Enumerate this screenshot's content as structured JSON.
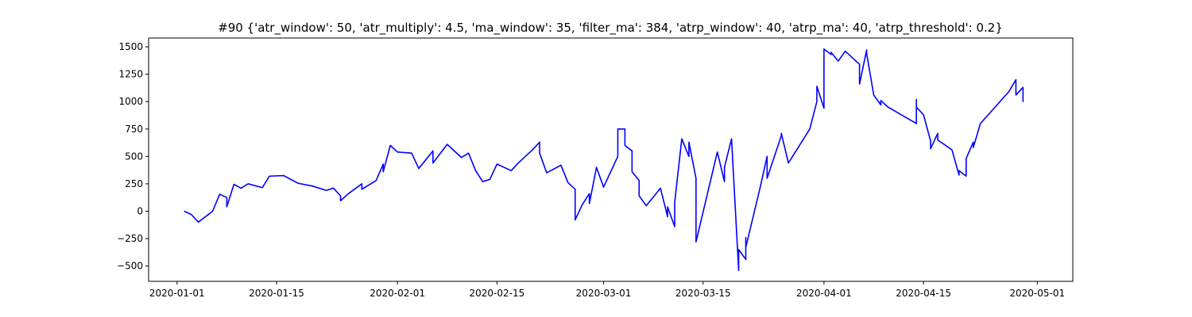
{
  "chart_data": {
    "type": "line",
    "title": "#90 {'atr_window': 50, 'atr_multiply': 4.5, 'ma_window': 35, 'filter_ma': 384, 'atrp_window': 40, 'atrp_ma': 40, 'atrp_threshold': 0.2}",
    "x": [
      "2020-01-02",
      "2020-01-03",
      "2020-01-04",
      "2020-01-06",
      "2020-01-07",
      "2020-01-08",
      "2020-01-08",
      "2020-01-09",
      "2020-01-10",
      "2020-01-11",
      "2020-01-13",
      "2020-01-14",
      "2020-01-16",
      "2020-01-17",
      "2020-01-18",
      "2020-01-20",
      "2020-01-22",
      "2020-01-23",
      "2020-01-24",
      "2020-01-24",
      "2020-01-25",
      "2020-01-27",
      "2020-01-27",
      "2020-01-29",
      "2020-01-30",
      "2020-01-30",
      "2020-01-31",
      "2020-02-01",
      "2020-02-03",
      "2020-02-04",
      "2020-02-05",
      "2020-02-06",
      "2020-02-06",
      "2020-02-08",
      "2020-02-10",
      "2020-02-11",
      "2020-02-12",
      "2020-02-13",
      "2020-02-14",
      "2020-02-15",
      "2020-02-17",
      "2020-02-18",
      "2020-02-19",
      "2020-02-20",
      "2020-02-21",
      "2020-02-21",
      "2020-02-22",
      "2020-02-24",
      "2020-02-25",
      "2020-02-26",
      "2020-02-26",
      "2020-02-26",
      "2020-02-27",
      "2020-02-28",
      "2020-02-28",
      "2020-02-29",
      "2020-03-01",
      "2020-03-03",
      "2020-03-03",
      "2020-03-04",
      "2020-03-04",
      "2020-03-05",
      "2020-03-05",
      "2020-03-06",
      "2020-03-06",
      "2020-03-07",
      "2020-03-09",
      "2020-03-10",
      "2020-03-10",
      "2020-03-11",
      "2020-03-11",
      "2020-03-12",
      "2020-03-13",
      "2020-03-13",
      "2020-03-14",
      "2020-03-14",
      "2020-03-17",
      "2020-03-18",
      "2020-03-18",
      "2020-03-19",
      "2020-03-20",
      "2020-03-20",
      "2020-03-21",
      "2020-03-21",
      "2020-03-21",
      "2020-03-23",
      "2020-03-24",
      "2020-03-24",
      "2020-03-26",
      "2020-03-26",
      "2020-03-27",
      "2020-03-30",
      "2020-03-31",
      "2020-03-31",
      "2020-04-01",
      "2020-04-01",
      "2020-04-02",
      "2020-04-02",
      "2020-04-03",
      "2020-04-04",
      "2020-04-06",
      "2020-04-06",
      "2020-04-07",
      "2020-04-07",
      "2020-04-08",
      "2020-04-09",
      "2020-04-09",
      "2020-04-10",
      "2020-04-14",
      "2020-04-14",
      "2020-04-14",
      "2020-04-15",
      "2020-04-16",
      "2020-04-16",
      "2020-04-17",
      "2020-04-17",
      "2020-04-19",
      "2020-04-20",
      "2020-04-20",
      "2020-04-21",
      "2020-04-21",
      "2020-04-22",
      "2020-04-22",
      "2020-04-23",
      "2020-04-27",
      "2020-04-28",
      "2020-04-28",
      "2020-04-29",
      "2020-04-29",
      "2020-04-29"
    ],
    "series": [
      {
        "color": "#0000ff",
        "values": [
          0,
          -30,
          -100,
          0,
          155,
          125,
          40,
          245,
          210,
          250,
          215,
          320,
          325,
          290,
          255,
          230,
          190,
          210,
          140,
          95,
          155,
          250,
          200,
          280,
          430,
          360,
          600,
          540,
          530,
          390,
          470,
          550,
          440,
          610,
          490,
          530,
          370,
          270,
          290,
          430,
          370,
          440,
          500,
          560,
          630,
          530,
          350,
          420,
          260,
          200,
          0,
          -80,
          60,
          160,
          70,
          400,
          220,
          500,
          750,
          750,
          600,
          550,
          360,
          280,
          140,
          50,
          210,
          -50,
          40,
          -140,
          80,
          660,
          500,
          630,
          300,
          -280,
          540,
          270,
          400,
          660,
          -540,
          -350,
          -440,
          -240,
          -330,
          210,
          500,
          300,
          690,
          710,
          440,
          750,
          1000,
          1140,
          940,
          1480,
          1430,
          1450,
          1370,
          1460,
          1340,
          1160,
          1470,
          1440,
          1060,
          970,
          1010,
          950,
          800,
          1020,
          950,
          880,
          640,
          570,
          710,
          650,
          560,
          330,
          370,
          320,
          480,
          630,
          580,
          800,
          1090,
          1200,
          1060,
          1130,
          1000,
          1050
        ]
      }
    ],
    "xlim": [
      "2019-12-28",
      "2020-05-06"
    ],
    "xticks": [
      "2020-01-01",
      "2020-01-15",
      "2020-02-01",
      "2020-02-15",
      "2020-03-01",
      "2020-03-15",
      "2020-04-01",
      "2020-04-15",
      "2020-05-01"
    ],
    "ylim": [
      -640,
      1580
    ],
    "yticks": [
      {
        "value": -500,
        "label": "−500"
      },
      {
        "value": -250,
        "label": "−250"
      },
      0,
      250,
      500,
      750,
      1000,
      1250,
      1500
    ],
    "grid": false
  }
}
